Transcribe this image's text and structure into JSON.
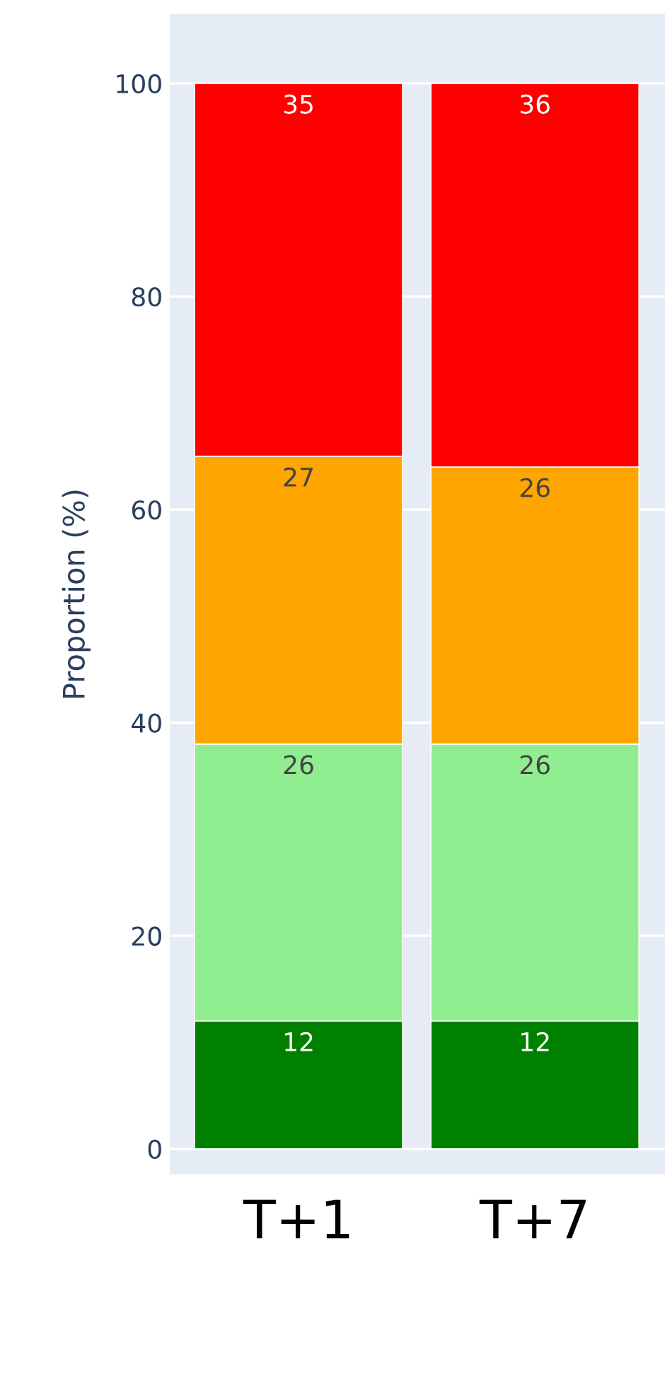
{
  "chart_data": {
    "type": "bar",
    "stacked": true,
    "ylabel": "Proportion (%)",
    "categories": [
      "T+1",
      "T+7"
    ],
    "series": [
      {
        "color": "#008000",
        "values": [
          12,
          12
        ]
      },
      {
        "color": "#90ee90",
        "values": [
          26,
          26
        ]
      },
      {
        "color": "#ffa500",
        "values": [
          27,
          26
        ]
      },
      {
        "color": "#ff0000",
        "values": [
          35,
          36
        ]
      }
    ],
    "ylim": [
      -2.4,
      106.5
    ],
    "yticks": [
      0,
      20,
      40,
      60,
      80,
      100
    ],
    "grid": "y",
    "data_labels": true,
    "legend": false
  }
}
